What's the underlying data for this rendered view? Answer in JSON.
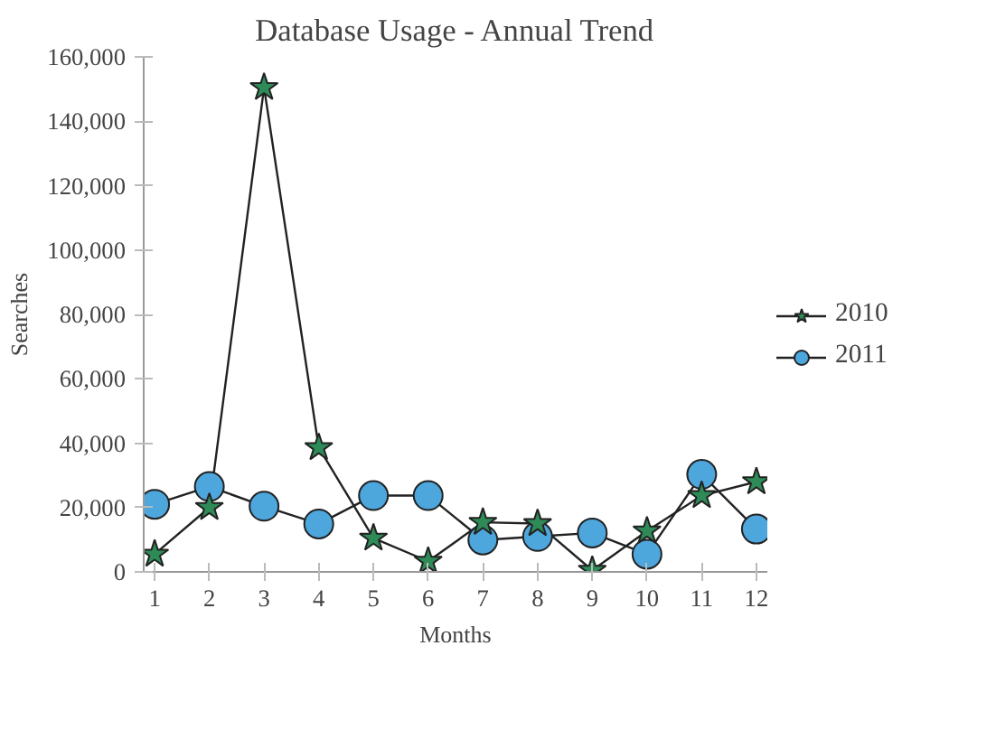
{
  "chart_data": {
    "type": "line",
    "title": "Database Usage - Annual Trend",
    "xlabel": "Months",
    "ylabel": "Searches",
    "x": [
      1,
      2,
      3,
      4,
      5,
      6,
      7,
      8,
      9,
      10,
      11,
      12
    ],
    "xlim": [
      0.8,
      12.2
    ],
    "xticks": [
      1,
      2,
      3,
      4,
      5,
      6,
      7,
      8,
      9,
      10,
      11,
      12
    ],
    "ylim": [
      0,
      160000
    ],
    "yticks": [
      0,
      {
        "value": 20000,
        "label": "20,000"
      },
      {
        "value": 40000,
        "label": "40,000"
      },
      {
        "value": 60000,
        "label": "60,000"
      },
      {
        "value": 80000,
        "label": "80,000"
      },
      {
        "value": 100000,
        "label": "100,000"
      },
      {
        "value": 120000,
        "label": "120,000"
      },
      {
        "value": 140000,
        "label": "140,000"
      },
      {
        "value": 160000,
        "label": "160,000"
      }
    ],
    "grid": false,
    "legend": "right",
    "series": [
      {
        "name": "2010",
        "color": "#2e8b57",
        "marker": "star",
        "values": [
          5500,
          20000,
          150500,
          38600,
          10500,
          3300,
          15400,
          15000,
          500,
          12700,
          23700,
          28000
        ]
      },
      {
        "name": "2011",
        "color": "#4da6dc",
        "marker": "circle",
        "values": [
          21000,
          26500,
          20400,
          14900,
          23700,
          23700,
          9900,
          11000,
          12100,
          5500,
          30300,
          13300
        ]
      }
    ]
  }
}
